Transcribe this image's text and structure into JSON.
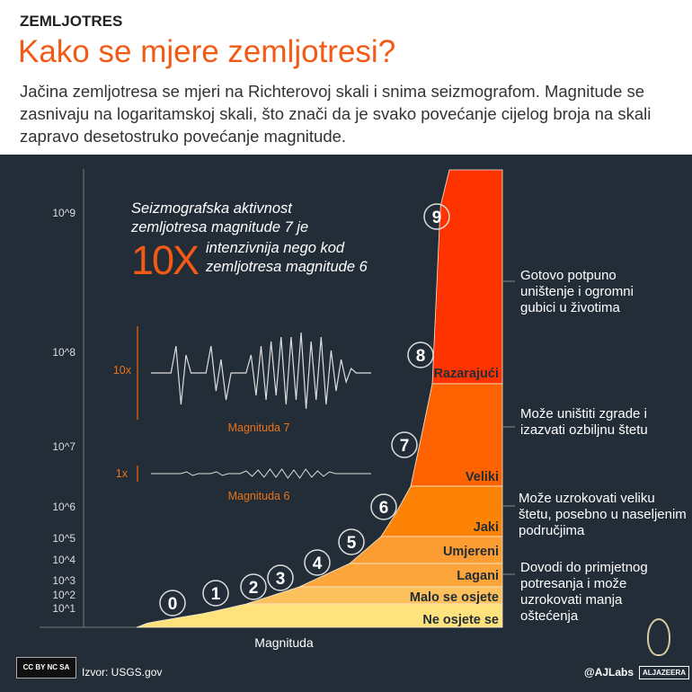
{
  "header": {
    "kicker": "ZEMLJOTRES",
    "title": "Kako se mjere zemljotresi?",
    "description": "Jačina zemljotresa se mjeri na Richterovoj skali i snima seizmografom. Magnitude se zasnivaju na logaritamskoj skali, što znači da je svako povećanje cijelog broja na skali zapravo desetostruko povećanje magnitude."
  },
  "intro": {
    "line1": "Seizmografska aktivnost",
    "line2": "zemljotresa magnitude 7 je",
    "big": "10X",
    "line3": "intenzivnija nego kod",
    "line4": "zemljotresa magnitude 6"
  },
  "seismo": {
    "m7_scale": "10x",
    "m7_label": "Magnituda 7",
    "m6_scale": "1x",
    "m6_label": "Magnituda 6"
  },
  "y_ticks": [
    "10^9",
    "10^8",
    "10^7",
    "10^6",
    "10^5",
    "10^4",
    "10^3",
    "10^2",
    "10^1"
  ],
  "x_label": "Magnituda",
  "magnitudes": [
    "0",
    "1",
    "2",
    "3",
    "4",
    "5",
    "6",
    "7",
    "8",
    "9"
  ],
  "bands": [
    {
      "label": "Razarajući",
      "color": "#ff3300"
    },
    {
      "label": "Veliki",
      "color": "#ff6200"
    },
    {
      "label": "Jaki",
      "color": "#fd8306"
    },
    {
      "label": "Umjereni",
      "color": "#fc9d33"
    },
    {
      "label": "Lagani",
      "color": "#fca53a"
    },
    {
      "label": "Malo se osjete",
      "color": "#fcc15c"
    },
    {
      "label": "Ne osjete se",
      "color": "#fee27c"
    }
  ],
  "notes": [
    {
      "text": "Gotovo potpuno uništenje i ogromni gubici u životima"
    },
    {
      "text": "Može uništiti zgrade i izazvati ozbiljnu štetu"
    },
    {
      "text": "Može uzrokovati veliku štetu, posebno u naseljenim područjima"
    },
    {
      "text": "Dovodi do primjetnog potresanja i može uzrokovati manja oštećenja"
    }
  ],
  "footer": {
    "license": "CC BY NC SA",
    "source": "Izvor: USGS.gov",
    "handle": "@AJLabs",
    "brand": "ALJAZEERA"
  }
}
